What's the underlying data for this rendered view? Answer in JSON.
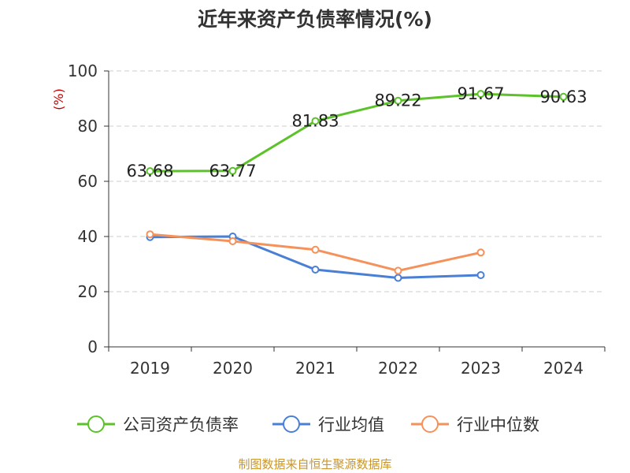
{
  "title": "近年来资产负债率情况(%)",
  "source": "制图数据来自恒生聚源数据库",
  "unit_label": "(%)",
  "colors": {
    "unit": "#cc0000",
    "source": "#c8962d",
    "grid": "#cccccc",
    "axis": "#333333"
  },
  "chart_data": {
    "type": "line",
    "title": "近年来资产负债率情况(%)",
    "ylabel": "(%)",
    "categories": [
      "2019",
      "2020",
      "2021",
      "2022",
      "2023",
      "2024"
    ],
    "yticks": [
      0,
      20,
      40,
      60,
      80,
      100
    ],
    "ylim": [
      0,
      100
    ],
    "grid": true,
    "legend_position": "bottom",
    "series": [
      {
        "name": "公司资产负债率",
        "color": "#5cc22a",
        "values": [
          63.68,
          63.77,
          81.83,
          89.22,
          91.67,
          90.63
        ],
        "show_labels": true
      },
      {
        "name": "行业均值",
        "color": "#4a7fd6",
        "values": [
          39.8,
          40.0,
          28.0,
          25.0,
          26.0,
          null
        ],
        "show_labels": false
      },
      {
        "name": "行业中位数",
        "color": "#f5915a",
        "values": [
          40.8,
          38.3,
          35.2,
          27.6,
          34.2,
          null
        ],
        "show_labels": false
      }
    ]
  }
}
